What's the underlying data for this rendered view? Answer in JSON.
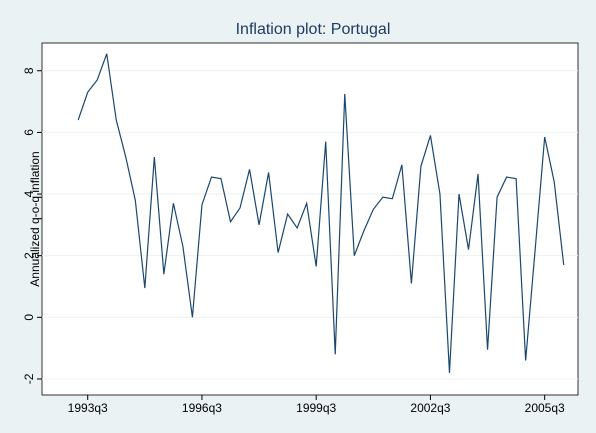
{
  "chart_data": {
    "type": "line",
    "title": "Inflation plot: Portugal",
    "y_label": "Annualized q-o-q inflation",
    "x": [
      133,
      134,
      135,
      136,
      137,
      138,
      139,
      140,
      141,
      142,
      143,
      144,
      145,
      146,
      147,
      148,
      149,
      150,
      151,
      152,
      153,
      154,
      155,
      156,
      157,
      158,
      159,
      160,
      161,
      162,
      163,
      164,
      165,
      166,
      167,
      168,
      169,
      170,
      171,
      172,
      173,
      174,
      175,
      176,
      177,
      178,
      179,
      180,
      181,
      182,
      183,
      184
    ],
    "series": [
      {
        "name": "Inflation",
        "color": "#1a476f",
        "values": [
          6.4,
          7.3,
          7.7,
          8.55,
          6.4,
          5.2,
          3.8,
          0.95,
          5.2,
          1.4,
          3.7,
          2.3,
          0.0,
          3.65,
          4.55,
          4.5,
          3.1,
          3.55,
          4.8,
          3.0,
          4.7,
          2.1,
          3.35,
          2.9,
          3.7,
          1.65,
          5.7,
          -1.2,
          7.25,
          2.0,
          2.8,
          3.5,
          3.9,
          3.85,
          4.95,
          1.1,
          4.9,
          5.9,
          4.0,
          -1.8,
          4.0,
          2.2,
          4.65,
          -1.05,
          3.9,
          4.55,
          4.5,
          -1.4,
          2.2,
          5.85,
          4.4,
          1.7
        ]
      }
    ],
    "xlim": [
      129.2,
      185.5
    ],
    "xticks": [
      {
        "value": 134,
        "label": "1993q3"
      },
      {
        "value": 146,
        "label": "1996q3"
      },
      {
        "value": 158,
        "label": "1999q3"
      },
      {
        "value": 170,
        "label": "2002q3"
      },
      {
        "value": 182,
        "label": "2005q3"
      }
    ],
    "ylim": [
      -2.52,
      8.9
    ],
    "yticks": [
      -2,
      0,
      2,
      4,
      6,
      8
    ],
    "grid": true
  }
}
